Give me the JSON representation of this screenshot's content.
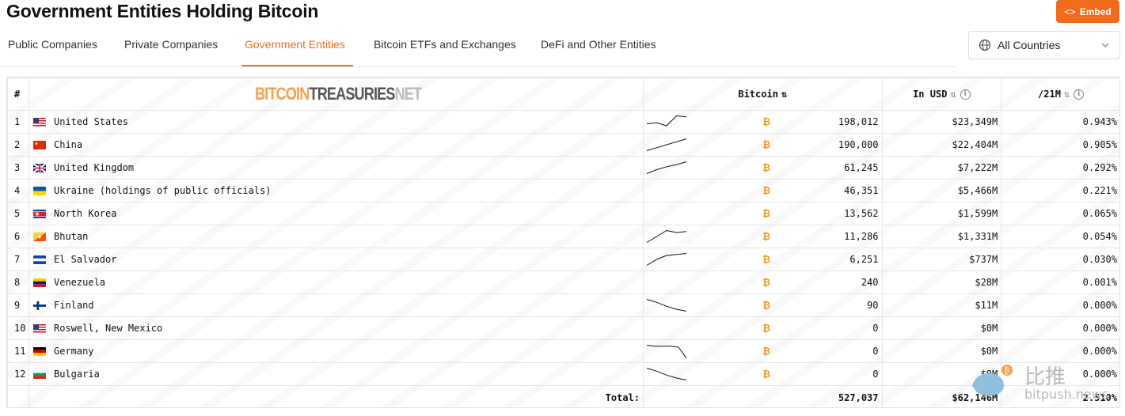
{
  "page": {
    "title": "Government Entities Holding Bitcoin"
  },
  "embed_button": {
    "label": "Embed",
    "icon": "code-icon"
  },
  "tabs": [
    {
      "label": "Public Companies"
    },
    {
      "label": "Private Companies"
    },
    {
      "label": "Government Entities",
      "active": true
    },
    {
      "label": "Bitcoin ETFs and Exchanges"
    },
    {
      "label": "DeFi and Other Entities"
    }
  ],
  "country_filter": {
    "value": "All Countries",
    "icon": "globe-icon"
  },
  "table": {
    "headers": {
      "rank": "#",
      "bitcoin": "Bitcoin",
      "usd": "In USD",
      "share": "/21M"
    },
    "logo": {
      "part1": "BITCOIN",
      "part2": "TREASURIES",
      "part3": "NET"
    },
    "rows": [
      {
        "rank": "1",
        "flag": "us",
        "name": "United States",
        "btc": "198,012",
        "usd": "$23,349M",
        "share": "0.943%",
        "trend": [
          6,
          7,
          4,
          14,
          13
        ]
      },
      {
        "rank": "2",
        "flag": "cn",
        "name": "China",
        "btc": "190,000",
        "usd": "$22,404M",
        "share": "0.905%",
        "trend": [
          2,
          5,
          8,
          11,
          14
        ]
      },
      {
        "rank": "3",
        "flag": "gb",
        "name": "United Kingdom",
        "btc": "61,245",
        "usd": "$7,222M",
        "share": "0.292%",
        "trend": [
          2,
          6,
          9,
          11,
          14
        ]
      },
      {
        "rank": "4",
        "flag": "ua",
        "name": "Ukraine (holdings of public officials)",
        "btc": "46,351",
        "usd": "$5,466M",
        "share": "0.221%",
        "trend": []
      },
      {
        "rank": "5",
        "flag": "kp",
        "name": "North Korea",
        "btc": "13,562",
        "usd": "$1,599M",
        "share": "0.065%",
        "trend": []
      },
      {
        "rank": "6",
        "flag": "bt",
        "name": "Bhutan",
        "btc": "11,286",
        "usd": "$1,331M",
        "share": "0.054%",
        "trend": [
          2,
          8,
          14,
          12,
          13
        ]
      },
      {
        "rank": "7",
        "flag": "sv",
        "name": "El Salvador",
        "btc": "6,251",
        "usd": "$737M",
        "share": "0.030%",
        "trend": [
          2,
          8,
          12,
          13,
          14
        ]
      },
      {
        "rank": "8",
        "flag": "ve",
        "name": "Venezuela",
        "btc": "240",
        "usd": "$28M",
        "share": "0.001%",
        "trend": []
      },
      {
        "rank": "9",
        "flag": "fi",
        "name": "Finland",
        "btc": "90",
        "usd": "$11M",
        "share": "0.000%",
        "trend": [
          14,
          11,
          7,
          4,
          2
        ]
      },
      {
        "rank": "10",
        "flag": "us",
        "name": "Roswell, New Mexico",
        "btc": "0",
        "usd": "$0M",
        "share": "0.000%",
        "trend": []
      },
      {
        "rank": "11",
        "flag": "de",
        "name": "Germany",
        "btc": "0",
        "usd": "$0M",
        "share": "0.000%",
        "trend": [
          14,
          13,
          13,
          13,
          12,
          1
        ]
      },
      {
        "rank": "12",
        "flag": "bg",
        "name": "Bulgaria",
        "btc": "0",
        "usd": "$0M",
        "share": "0.000%",
        "trend": [
          14,
          11,
          7,
          4,
          2
        ]
      }
    ],
    "total": {
      "label": "Total:",
      "btc": "527,037",
      "usd": "$62,146M",
      "share": "2.510%"
    }
  },
  "watermark": {
    "brand_cn": "比推",
    "brand_url": "bitpush.news"
  },
  "colors": {
    "accent": "#f26b1d",
    "btc": "#f7931a"
  }
}
